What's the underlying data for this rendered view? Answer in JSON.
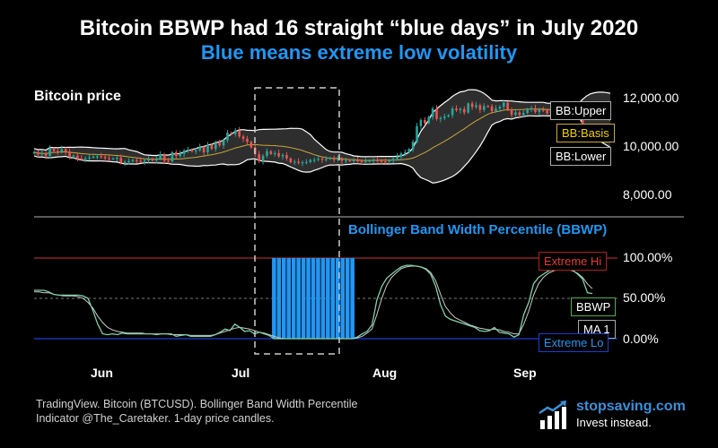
{
  "title": "Bitcoin BBWP had 16 straight “blue days” in July 2020",
  "subtitle": "Blue means extreme low volatility",
  "source": "TradingView. Bitcoin (BTCUSD). Bollinger Band Width Percentile Indicator @The_Caretaker. 1-day price candles.",
  "brand": {
    "name": "stopsaving.com",
    "tagline": "Invest instead."
  },
  "colors": {
    "background": "#000000",
    "blue": "#2196f3",
    "up": "#26a69a",
    "down": "#ef5350",
    "basis": "#c8a73c",
    "band": "#ffffff",
    "extreme_hi": "#d32f2f",
    "extreme_lo": "#1a3fd6",
    "ma": "#cccccc",
    "bbwp_line": "#7fd0a8"
  },
  "chart_data": [
    {
      "type": "candlestick",
      "title": "Bitcoin price",
      "y_ticks": [
        "12,000.00",
        "10,000.00",
        "8,000.00"
      ],
      "y_tick_values": [
        12000,
        10000,
        8000
      ],
      "ylim": [
        7400,
        13000
      ],
      "x_ticks": [
        "Jun",
        "Jul",
        "Aug",
        "Sep"
      ],
      "legend_tags": [
        "BB:Upper",
        "BB:Basis",
        "BB:Lower"
      ],
      "highlight_window": [
        "2020-07-02",
        "2020-07-20"
      ],
      "closes": [
        9600,
        9500,
        9560,
        9430,
        9800,
        9660,
        9620,
        9750,
        9640,
        9380,
        9440,
        9300,
        9280,
        9310,
        9350,
        9390,
        9410,
        9380,
        9320,
        9290,
        9300,
        9330,
        9100,
        9130,
        9170,
        9230,
        9190,
        9160,
        9200,
        9280,
        9210,
        9300,
        9490,
        9190,
        9160,
        9600,
        9420,
        9520,
        9680,
        9730,
        9640,
        9700,
        9850,
        9600,
        9960,
        9760,
        10050,
        9930,
        10180,
        10540,
        10480,
        10650,
        10360,
        10250,
        10100,
        9830,
        9510,
        9170,
        9430,
        9650,
        9520,
        9560,
        9400,
        9470,
        9300,
        9120,
        9150,
        9090,
        9120,
        9130,
        9230,
        9240,
        9290,
        9250,
        9280,
        9330,
        9240,
        9280,
        9190,
        9210,
        9200,
        9220,
        9180,
        9150,
        9180,
        9200,
        9220,
        9190,
        9160,
        9150,
        9210,
        9280,
        9390,
        9540,
        9600,
        9750,
        10100,
        10850,
        11150,
        11000,
        11300,
        11700,
        11200,
        11250,
        11320,
        11380,
        11700,
        11620,
        11680,
        11510,
        11950,
        11770,
        11860,
        11640,
        11820,
        11810,
        11580,
        11700,
        11780,
        11980,
        11640,
        11400,
        11520,
        11380,
        11490,
        11680,
        11720,
        11540,
        11650,
        11640,
        11470,
        11700,
        11650,
        11680,
        11760,
        11860,
        11910,
        11630,
        11380,
        10430,
        10250,
        10250,
        10300,
        10470,
        10520,
        10340,
        10270
      ]
    },
    {
      "type": "line",
      "title": "Bollinger Band Width Percentile (BBWP)",
      "y_ticks": [
        "100.00%",
        "50.00%",
        "0.00%"
      ],
      "y_tick_values": [
        100,
        50,
        0
      ],
      "ylim": [
        0,
        100
      ],
      "x_ticks": [
        "Jun",
        "Jul",
        "Aug",
        "Sep"
      ],
      "legend_tags": [
        "Extreme Hi",
        "BBWP",
        "MA 1",
        "Extreme Lo"
      ],
      "extreme_hi": 100,
      "extreme_lo": 0,
      "blue_days": 16,
      "bbwp": [
        60,
        60,
        60,
        58,
        55,
        54,
        54,
        54,
        54,
        54,
        53,
        50,
        35,
        18,
        6,
        5,
        6,
        5,
        7,
        6,
        6,
        6,
        6,
        6,
        6,
        5,
        6,
        6,
        6,
        3,
        4,
        5,
        3,
        3,
        3,
        3,
        3,
        5,
        8,
        12,
        10,
        18,
        14,
        9,
        10,
        6,
        8,
        6,
        4,
        0,
        0,
        0,
        0,
        0,
        0,
        0,
        0,
        0,
        0,
        0,
        0,
        0,
        0,
        0,
        0,
        0,
        2,
        6,
        9,
        17,
        48,
        65,
        75,
        80,
        85,
        89,
        91,
        91,
        90,
        89,
        86,
        80,
        65,
        42,
        28,
        24,
        22,
        20,
        18,
        16,
        14,
        10,
        9,
        10,
        14,
        8,
        7,
        6,
        2,
        5,
        30,
        45,
        68,
        76,
        80,
        84,
        86,
        87,
        87,
        88,
        85,
        80,
        74,
        57,
        56
      ],
      "ma": [
        58,
        58,
        57,
        57,
        55,
        54,
        53,
        53,
        53,
        52,
        50,
        45,
        38,
        28,
        20,
        14,
        11,
        9,
        8,
        7,
        7,
        7,
        7,
        6,
        6,
        6,
        6,
        6,
        5,
        5,
        5,
        5,
        4,
        4,
        4,
        4,
        4,
        5,
        7,
        9,
        11,
        13,
        14,
        13,
        12,
        10,
        8,
        7,
        5,
        3,
        1,
        0,
        0,
        0,
        0,
        0,
        0,
        0,
        0,
        0,
        0,
        0,
        0,
        0,
        0,
        0,
        1,
        3,
        7,
        12,
        30,
        50,
        66,
        76,
        82,
        87,
        89,
        90,
        90,
        89,
        87,
        82,
        72,
        55,
        40,
        32,
        26,
        23,
        20,
        17,
        15,
        13,
        12,
        11,
        12,
        11,
        9,
        8,
        6,
        6,
        18,
        34,
        54,
        68,
        76,
        81,
        84,
        86,
        86,
        86,
        84,
        81,
        76,
        68,
        62
      ]
    }
  ]
}
